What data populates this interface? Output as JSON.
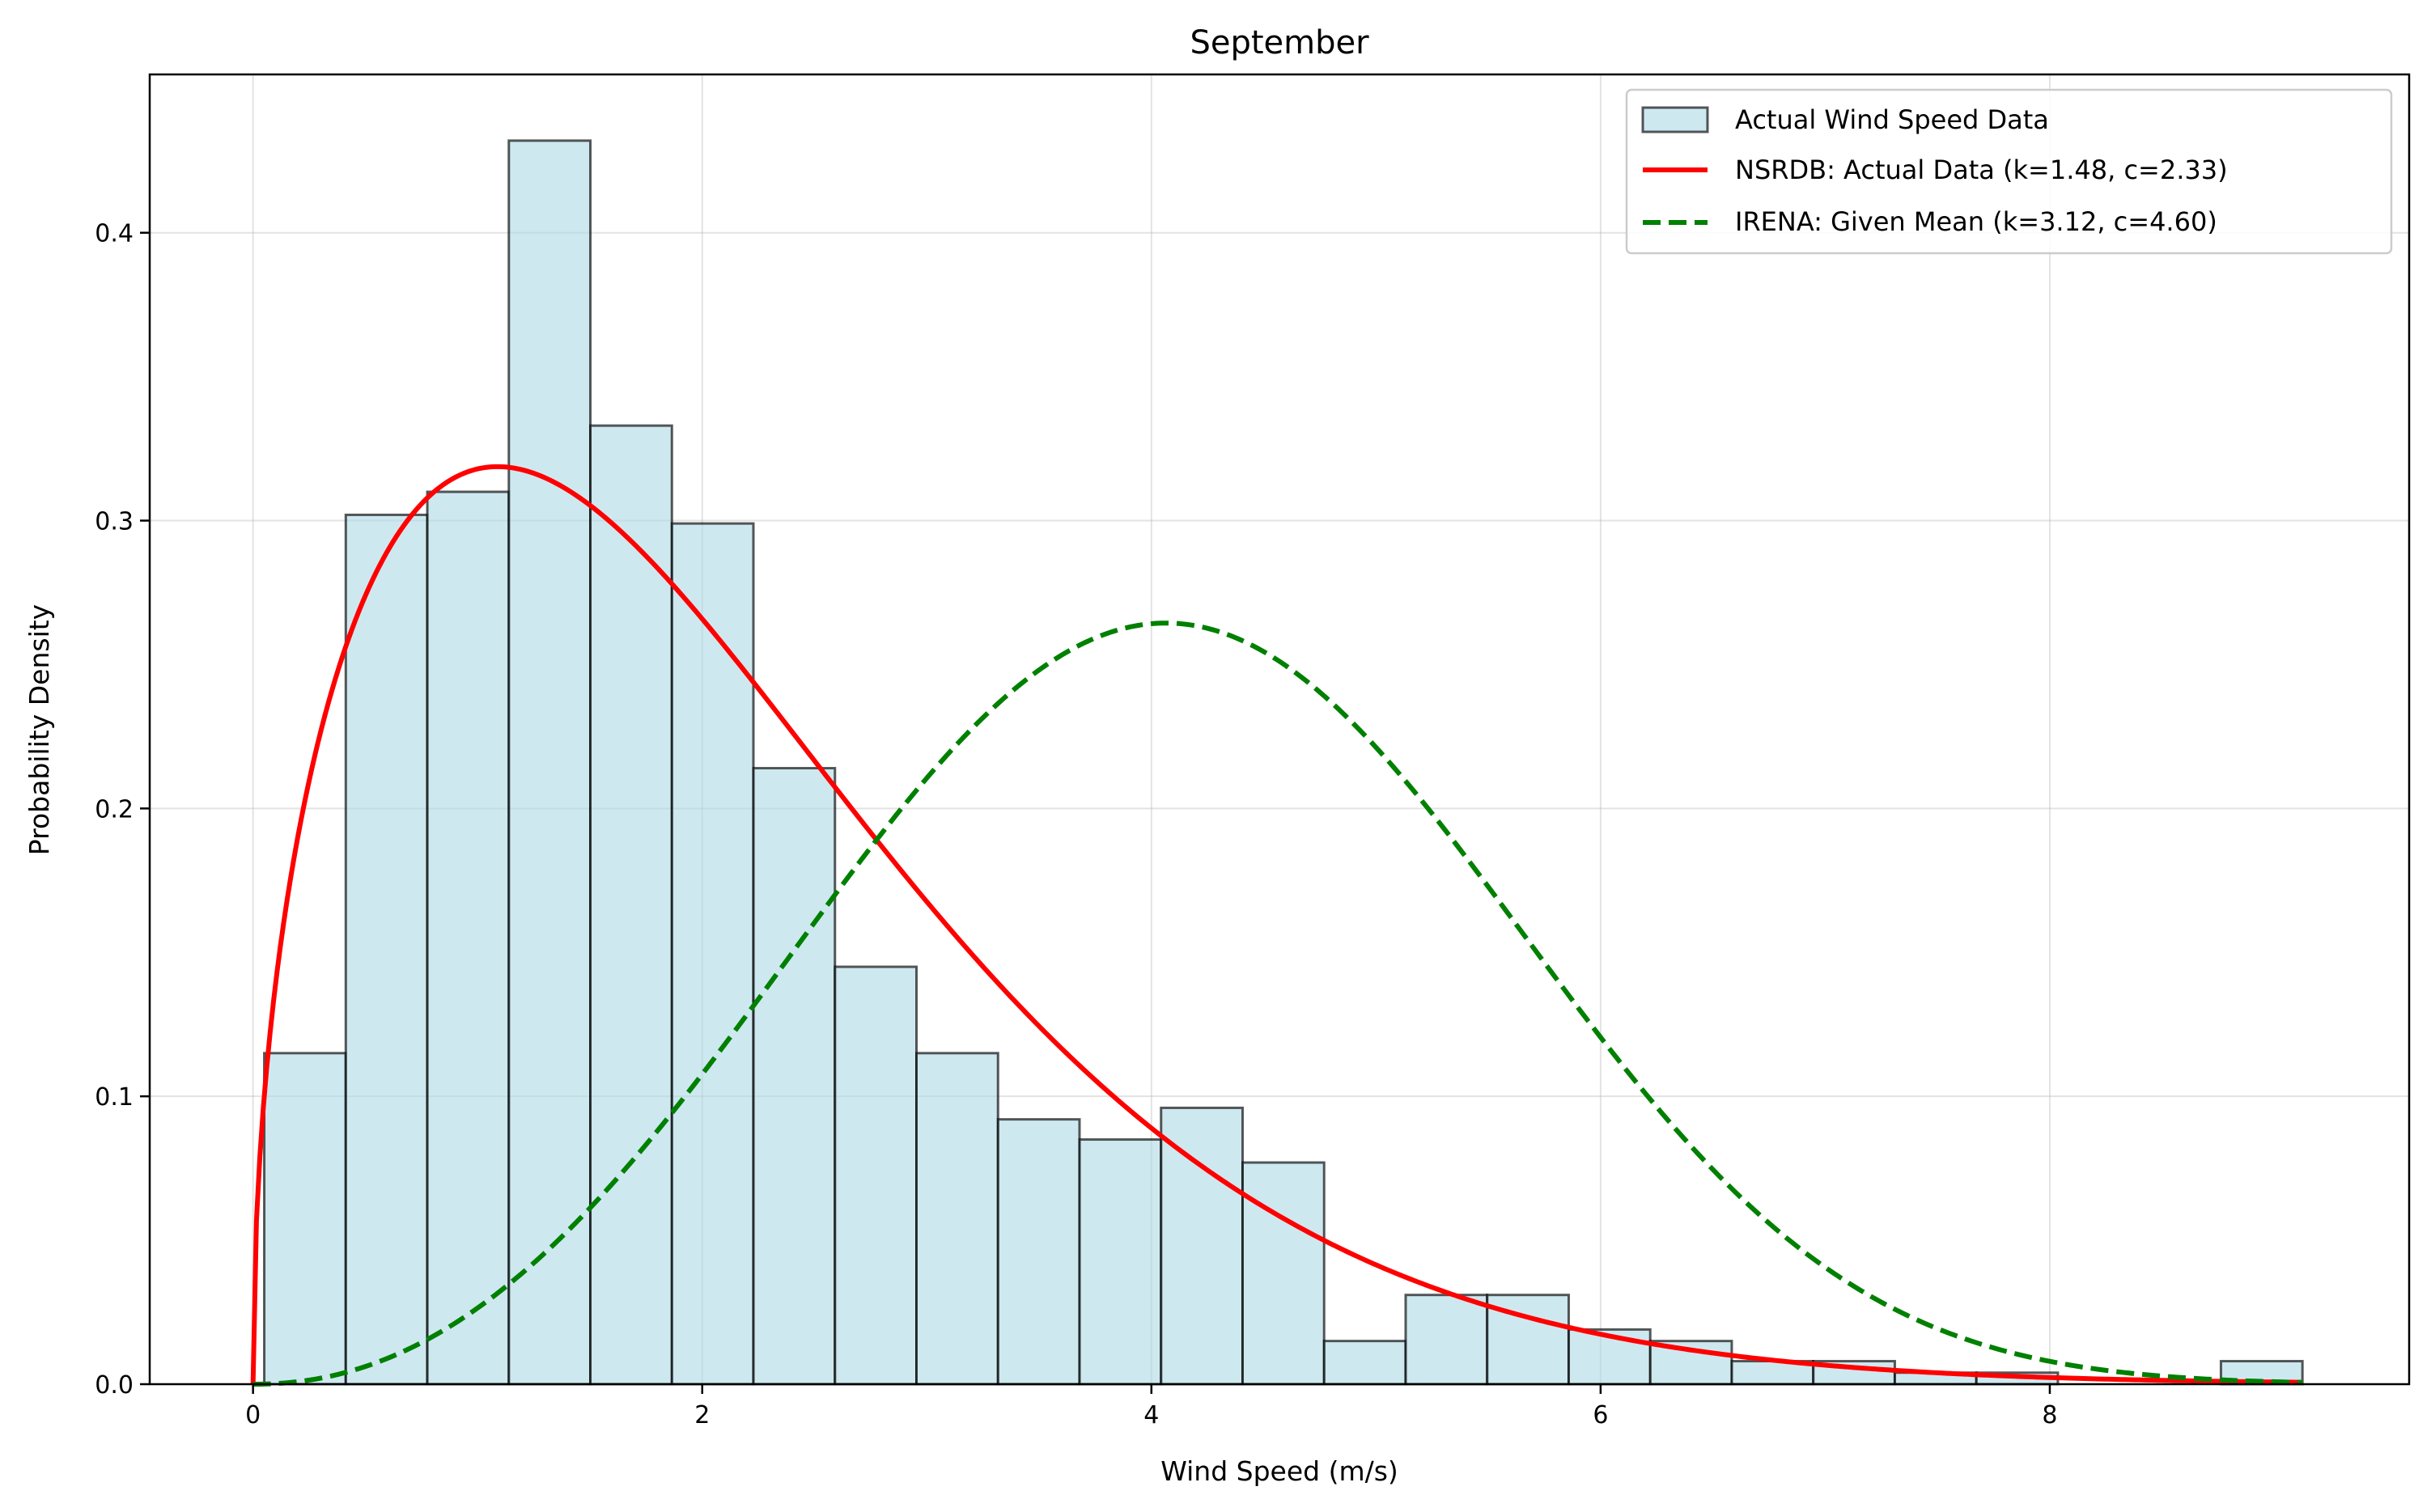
{
  "chart_data": {
    "type": "bar",
    "title": "September",
    "xlabel": "Wind Speed (m/s)",
    "ylabel": "Probability Density",
    "xlim": [
      -0.46,
      9.6
    ],
    "ylim": [
      0,
      0.455
    ],
    "xticks": [
      0,
      2,
      4,
      6,
      8
    ],
    "yticks": [
      0.0,
      0.1,
      0.2,
      0.3,
      0.4
    ],
    "grid": true,
    "legend_position": "top-right",
    "histogram": {
      "name": "Actual Wind Speed Data",
      "color": "#add8e6",
      "bin_edges": [
        0.05,
        0.413,
        0.776,
        1.139,
        1.502,
        1.865,
        2.228,
        2.591,
        2.954,
        3.317,
        3.68,
        4.043,
        4.406,
        4.769,
        5.132,
        5.495,
        5.858,
        6.221,
        6.584,
        6.947,
        7.31,
        7.673,
        8.036,
        8.399,
        8.762,
        9.125
      ],
      "densities": [
        0.115,
        0.302,
        0.31,
        0.432,
        0.333,
        0.299,
        0.214,
        0.145,
        0.115,
        0.092,
        0.085,
        0.096,
        0.077,
        0.015,
        0.031,
        0.031,
        0.019,
        0.015,
        0.008,
        0.008,
        0.004,
        0.004,
        0.0,
        0.0,
        0.008
      ]
    },
    "series": [
      {
        "name": "NSRDB: Actual Data (k=1.48, c=2.33)",
        "distribution": "weibull",
        "k": 1.48,
        "c": 2.33,
        "x_range": [
          0,
          9.125
        ],
        "color": "#ff0000",
        "style": "solid"
      },
      {
        "name": "IRENA: Given Mean (k=3.12, c=4.60)",
        "distribution": "weibull",
        "k": 3.12,
        "c": 4.6,
        "x_range": [
          0,
          9.125
        ],
        "color": "#008000",
        "style": "dashed"
      }
    ]
  }
}
